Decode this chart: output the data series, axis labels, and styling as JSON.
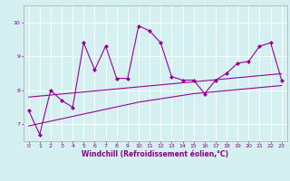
{
  "xlabel": "Windchill (Refroidissement éolien,°C)",
  "x": [
    0,
    1,
    2,
    3,
    4,
    5,
    6,
    7,
    8,
    9,
    10,
    11,
    12,
    13,
    14,
    15,
    16,
    17,
    18,
    19,
    20,
    21,
    22,
    23
  ],
  "y_data": [
    7.4,
    6.7,
    8.0,
    7.7,
    7.5,
    9.4,
    8.6,
    9.3,
    8.35,
    8.35,
    9.9,
    9.75,
    9.4,
    8.4,
    8.3,
    8.3,
    7.9,
    8.3,
    8.5,
    8.8,
    8.85,
    9.3,
    9.4,
    8.3
  ],
  "y_trend1": [
    7.8,
    7.83,
    7.86,
    7.89,
    7.92,
    7.95,
    7.98,
    8.01,
    8.04,
    8.07,
    8.1,
    8.13,
    8.16,
    8.19,
    8.22,
    8.25,
    8.28,
    8.31,
    8.34,
    8.37,
    8.4,
    8.43,
    8.46,
    8.49
  ],
  "y_trend2": [
    6.95,
    7.02,
    7.09,
    7.16,
    7.23,
    7.3,
    7.37,
    7.44,
    7.51,
    7.58,
    7.65,
    7.7,
    7.75,
    7.8,
    7.85,
    7.9,
    7.93,
    7.96,
    7.99,
    8.02,
    8.05,
    8.08,
    8.11,
    8.14
  ],
  "line_color": "#990099",
  "bg_color": "#d5f0f0",
  "grid_color": "#ffffff",
  "ylim": [
    6.5,
    10.5
  ],
  "xlim": [
    -0.5,
    23.5
  ],
  "yticks": [
    7,
    8,
    9,
    10
  ],
  "xticks": [
    0,
    1,
    2,
    3,
    4,
    5,
    6,
    7,
    8,
    9,
    10,
    11,
    12,
    13,
    14,
    15,
    16,
    17,
    18,
    19,
    20,
    21,
    22,
    23
  ],
  "marker": "D",
  "markersize": 2.2,
  "linewidth": 0.8,
  "tick_fontsize": 4.5,
  "xlabel_fontsize": 5.5,
  "tick_color": "#880088",
  "label_color": "#880088"
}
